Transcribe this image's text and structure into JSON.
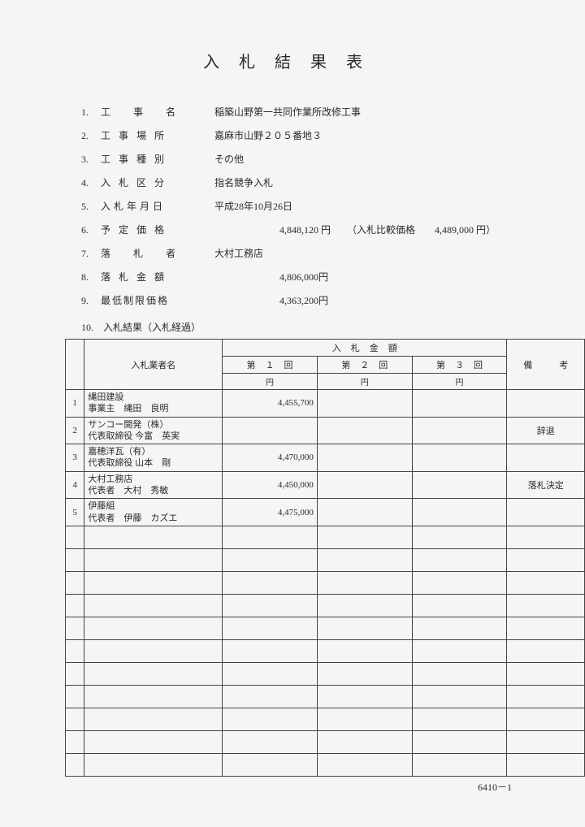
{
  "title": "入札結果表",
  "meta": [
    {
      "num": "1.",
      "label": "工事名",
      "labelClass": "sp1",
      "value": "稲築山野第一共同作業所改修工事"
    },
    {
      "num": "2.",
      "label": "工事場所",
      "labelClass": "sp2",
      "value": "嘉麻市山野２０５番地３"
    },
    {
      "num": "3.",
      "label": "工事種別",
      "labelClass": "sp2",
      "value": "その他"
    },
    {
      "num": "4.",
      "label": "入札区分",
      "labelClass": "sp2",
      "value": "指名競争入札"
    },
    {
      "num": "5.",
      "label": "入札年月日",
      "labelClass": "sp3",
      "value": "平成28年10月26日"
    },
    {
      "num": "6.",
      "label": "予定価格",
      "labelClass": "sp2",
      "value": "4,848,120 円",
      "extra": "（入札比較価格　　4,489,000 円）",
      "isNum": true
    },
    {
      "num": "7.",
      "label": "落札者",
      "labelClass": "sp1",
      "value": "大村工務店"
    },
    {
      "num": "8.",
      "label": "落札金額",
      "labelClass": "sp2",
      "value": "4,806,000円",
      "isNum": true
    },
    {
      "num": "9.",
      "label": "最低制限価格",
      "labelClass": "sp4",
      "value": "4,363,200円",
      "isNum": true
    }
  ],
  "resultLabel": "10.　入札結果（入札経過）",
  "table": {
    "headers": {
      "bidder": "入札業者名",
      "amount": "入札金額",
      "round1": "第１回",
      "round2": "第２回",
      "round3": "第３回",
      "note": "備　　　考",
      "yen": "円"
    },
    "rows": [
      {
        "num": "1",
        "line1": "縄田建設",
        "line2": "事業主　縄田　良明",
        "r1": "4,455,700",
        "r2": "",
        "r3": "",
        "note": ""
      },
      {
        "num": "2",
        "line1": "サンコー開発（株）",
        "line2": "代表取締役 今富　英実",
        "r1": "",
        "r2": "",
        "r3": "",
        "note": "辞退"
      },
      {
        "num": "3",
        "line1": "嘉穂洋瓦（有）",
        "line2": "代表取締役 山本　剛",
        "r1": "4,470,000",
        "r2": "",
        "r3": "",
        "note": ""
      },
      {
        "num": "4",
        "line1": "大村工務店",
        "line2": "代表者　大村　秀敏",
        "r1": "4,450,000",
        "r2": "",
        "r3": "",
        "note": "落札決定"
      },
      {
        "num": "5",
        "line1": "伊藤組",
        "line2": "代表者　伊藤　カズエ",
        "r1": "4,475,000",
        "r2": "",
        "r3": "",
        "note": ""
      }
    ],
    "emptyRows": 11
  },
  "footer": "6410－1"
}
